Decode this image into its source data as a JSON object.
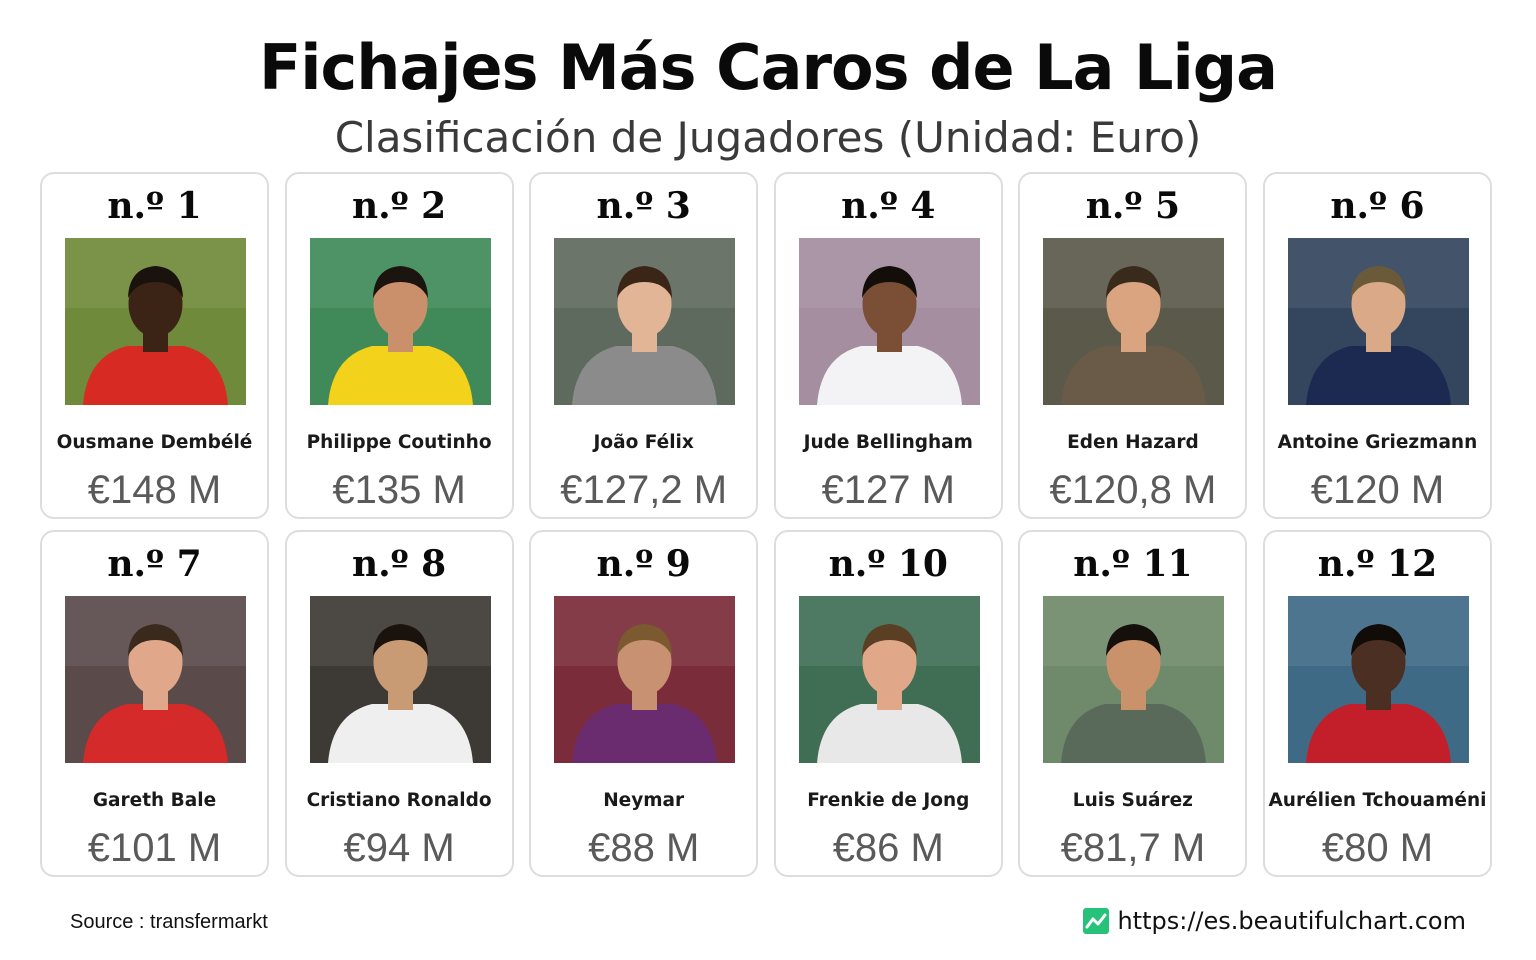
{
  "header": {
    "title": "Fichajes Más Caros de La Liga",
    "subtitle": "Clasificación de Jugadores (Unidad: Euro)"
  },
  "players": [
    {
      "rank": "n.º 1",
      "name": "Ousmane Dembélé",
      "fee": "€148 M",
      "bg": "#6f8a3a",
      "shirt": "#d62a23",
      "skin": "#3b2416",
      "hair": "#1a120c"
    },
    {
      "rank": "n.º 2",
      "name": "Philippe Coutinho",
      "fee": "€135 M",
      "bg": "#3f8a58",
      "shirt": "#f2d21a",
      "skin": "#c9906b",
      "hair": "#1c140f"
    },
    {
      "rank": "n.º 3",
      "name": "João Félix",
      "fee": "€127,2 M",
      "bg": "#5f6a5e",
      "shirt": "#8b8b8b",
      "skin": "#e1b595",
      "hair": "#3b2517"
    },
    {
      "rank": "n.º 4",
      "name": "Jude Bellingham",
      "fee": "€127 M",
      "bg": "#a48ea0",
      "shirt": "#f3f3f5",
      "skin": "#7a4f35",
      "hair": "#140e0a"
    },
    {
      "rank": "n.º 5",
      "name": "Eden Hazard",
      "fee": "€120,8 M",
      "bg": "#5b5a4a",
      "shirt": "#6a5a48",
      "skin": "#d9a47f",
      "hair": "#3a2a1c"
    },
    {
      "rank": "n.º 6",
      "name": "Antoine Griezmann",
      "fee": "€120 M",
      "bg": "#33465e",
      "shirt": "#1c2a52",
      "skin": "#d9a988",
      "hair": "#6b5a3a"
    },
    {
      "rank": "n.º 7",
      "name": "Gareth Bale",
      "fee": "€101 M",
      "bg": "#5a4a4a",
      "shirt": "#d42a2a",
      "skin": "#e0a78a",
      "hair": "#3a2a1e"
    },
    {
      "rank": "n.º 8",
      "name": "Cristiano Ronaldo",
      "fee": "€94 M",
      "bg": "#3d3a36",
      "shirt": "#efefef",
      "skin": "#c99b75",
      "hair": "#1a120c"
    },
    {
      "rank": "n.º 9",
      "name": "Neymar",
      "fee": "€88 M",
      "bg": "#7a2c3a",
      "shirt": "#6a2c6e",
      "skin": "#c89272",
      "hair": "#7a5a2e"
    },
    {
      "rank": "n.º 10",
      "name": "Frenkie de Jong",
      "fee": "€86 M",
      "bg": "#3f6e55",
      "shirt": "#e8e8e8",
      "skin": "#e0a888",
      "hair": "#5a3f25"
    },
    {
      "rank": "n.º 11",
      "name": "Luis Suárez",
      "fee": "€81,7 M",
      "bg": "#6f8a6a",
      "shirt": "#5a6a5a",
      "skin": "#c9926a",
      "hair": "#15100c"
    },
    {
      "rank": "n.º 12",
      "name": "Aurélien Tchouaméni",
      "fee": "€80 M",
      "bg": "#3f6a86",
      "shirt": "#c21f2a",
      "skin": "#4a2f22",
      "hair": "#120c08"
    }
  ],
  "footer": {
    "source": "Source : transfermarkt",
    "site_url": "https://es.beautifulchart.com",
    "site_icon": "line-chart-icon",
    "site_icon_color": "#27c27a"
  }
}
